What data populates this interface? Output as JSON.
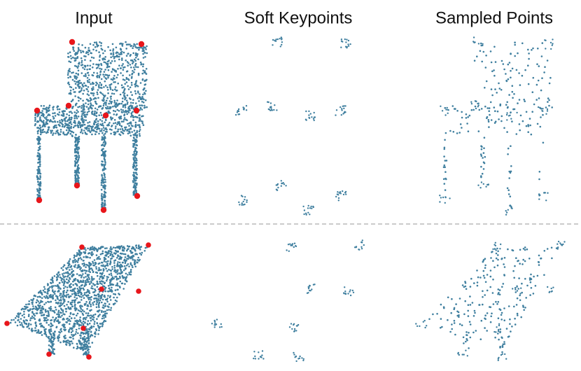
{
  "columns": [
    "Input",
    "Soft Keypoints",
    "Sampled Points"
  ]
}
